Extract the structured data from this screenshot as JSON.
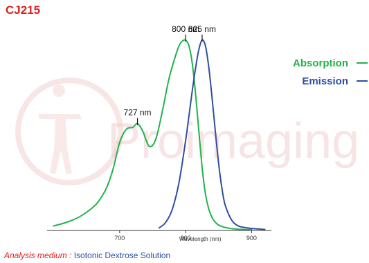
{
  "title": "CJ215",
  "legend": {
    "absorption_label": "Absorption",
    "emission_label": "Emission"
  },
  "footer": {
    "medium_label": "Analysis medium :",
    "medium_value": "Isotonic Dextrose Solution"
  },
  "watermark": {
    "text": "Proimaging"
  },
  "colors": {
    "absorption": "#21b34a",
    "emission": "#2e4fa0",
    "title": "#e02020",
    "watermark": "#f2cfcf"
  },
  "chart_data": {
    "type": "line",
    "xlabel": "Wavelength (nm)",
    "ylabel": "",
    "xlim": [
      590,
      930
    ],
    "ylim": [
      0,
      1.0
    ],
    "x_ticks": [
      700,
      800,
      900
    ],
    "x_tick_labels": [
      "700",
      "800",
      "900"
    ],
    "grid": false,
    "legend_position": "right",
    "series": [
      {
        "name": "Absorption",
        "x": [
          600,
          620,
          640,
          660,
          670,
          680,
          690,
          700,
          710,
          720,
          727,
          735,
          745,
          755,
          765,
          775,
          785,
          790,
          795,
          800,
          805,
          810,
          815,
          820,
          825,
          830,
          835,
          840,
          845,
          850,
          860,
          870,
          880,
          890,
          900
        ],
        "y": [
          0.02,
          0.04,
          0.07,
          0.12,
          0.16,
          0.22,
          0.32,
          0.46,
          0.53,
          0.54,
          0.56,
          0.52,
          0.44,
          0.48,
          0.63,
          0.8,
          0.92,
          0.97,
          0.995,
          1.0,
          0.97,
          0.88,
          0.72,
          0.52,
          0.33,
          0.19,
          0.11,
          0.065,
          0.04,
          0.025,
          0.012,
          0.006,
          0.003,
          0.002,
          0.001
        ]
      },
      {
        "name": "Emission",
        "x": [
          760,
          770,
          780,
          790,
          800,
          805,
          810,
          815,
          820,
          825,
          830,
          835,
          840,
          845,
          850,
          855,
          860,
          870,
          880,
          890,
          900,
          910,
          920
        ],
        "y": [
          0.01,
          0.04,
          0.11,
          0.25,
          0.47,
          0.6,
          0.73,
          0.85,
          0.95,
          1.0,
          0.97,
          0.86,
          0.7,
          0.52,
          0.35,
          0.22,
          0.13,
          0.05,
          0.02,
          0.012,
          0.007,
          0.004,
          0.002
        ]
      }
    ],
    "annotations": [
      {
        "text": "727 nm",
        "x": 727,
        "series": "Absorption"
      },
      {
        "text": "800 nm",
        "x": 800,
        "series": "Absorption"
      },
      {
        "text": "825 nm",
        "x": 825,
        "series": "Emission"
      }
    ]
  }
}
